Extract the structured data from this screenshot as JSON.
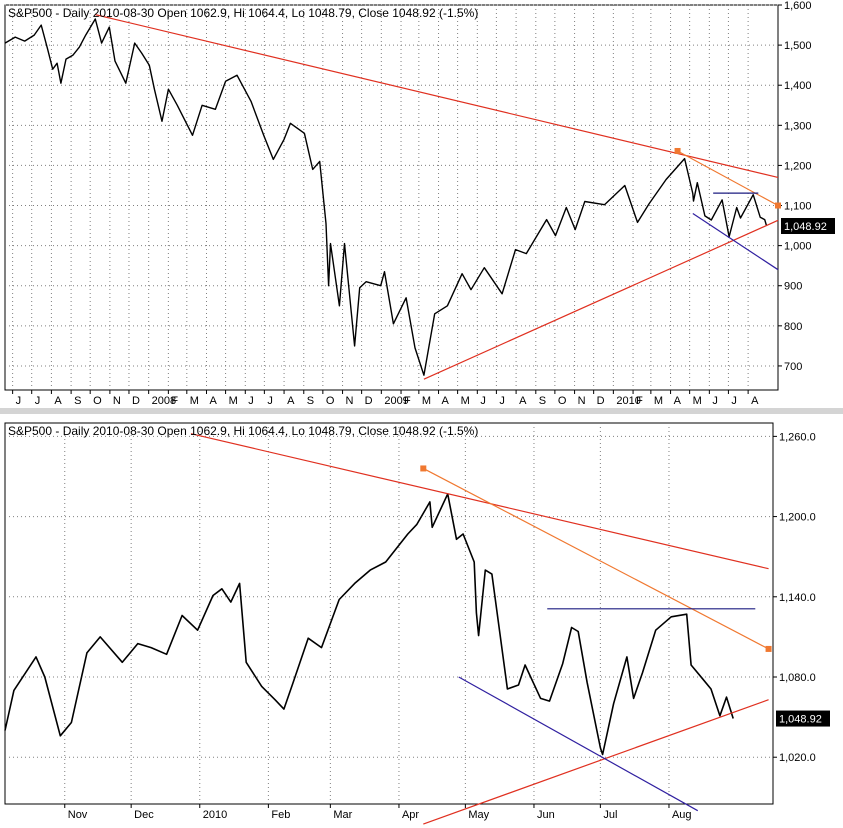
{
  "colors": {
    "price": "#000000",
    "grid": "#808080",
    "trend_red": "#e03020",
    "trend_orange": "#f07830",
    "trend_blue": "#3020a0",
    "trend_navy": "#1c1c80",
    "last_label_bg": "#000000",
    "last_label_fg": "#ffffff"
  },
  "chart_data": [
    {
      "type": "line",
      "title": "S&P500 - Daily 2010-08-30 Open 1062.9, Hi 1064.4, Lo 1048.79, Close 1048.92 (-1.5%)",
      "xlabel": "",
      "ylabel": "",
      "ylim": [
        640,
        1600
      ],
      "y_ticks": [
        700,
        800,
        900,
        1000,
        1100,
        1200,
        1300,
        1400,
        1500,
        1600
      ],
      "y_tick_labels": [
        "700",
        "800",
        "900",
        "1,000",
        "1,100",
        "1,200",
        "1,300",
        "1,400",
        "1,500",
        "1,600"
      ],
      "xlim": [
        "2007-05-20",
        "2010-09-17"
      ],
      "x_tick_labels": [
        {
          "date": "2007-06-01",
          "label": "J"
        },
        {
          "date": "2007-07-01",
          "label": "J"
        },
        {
          "date": "2007-08-01",
          "label": "A"
        },
        {
          "date": "2007-09-01",
          "label": "S"
        },
        {
          "date": "2007-10-01",
          "label": "O"
        },
        {
          "date": "2007-11-01",
          "label": "N"
        },
        {
          "date": "2007-12-01",
          "label": "D"
        },
        {
          "date": "2008-01-01",
          "label": "2008"
        },
        {
          "date": "2008-02-01",
          "label": "F"
        },
        {
          "date": "2008-03-01",
          "label": "M"
        },
        {
          "date": "2008-04-01",
          "label": "A"
        },
        {
          "date": "2008-05-01",
          "label": "M"
        },
        {
          "date": "2008-06-01",
          "label": "J"
        },
        {
          "date": "2008-07-01",
          "label": "J"
        },
        {
          "date": "2008-08-01",
          "label": "A"
        },
        {
          "date": "2008-09-01",
          "label": "S"
        },
        {
          "date": "2008-10-01",
          "label": "O"
        },
        {
          "date": "2008-11-01",
          "label": "N"
        },
        {
          "date": "2008-12-01",
          "label": "D"
        },
        {
          "date": "2009-01-01",
          "label": "2009"
        },
        {
          "date": "2009-02-01",
          "label": "F"
        },
        {
          "date": "2009-03-01",
          "label": "M"
        },
        {
          "date": "2009-04-01",
          "label": "A"
        },
        {
          "date": "2009-05-01",
          "label": "M"
        },
        {
          "date": "2009-06-01",
          "label": "J"
        },
        {
          "date": "2009-07-01",
          "label": "J"
        },
        {
          "date": "2009-08-01",
          "label": "A"
        },
        {
          "date": "2009-09-01",
          "label": "S"
        },
        {
          "date": "2009-10-01",
          "label": "O"
        },
        {
          "date": "2009-11-01",
          "label": "N"
        },
        {
          "date": "2009-12-01",
          "label": "D"
        },
        {
          "date": "2010-01-01",
          "label": "2010"
        },
        {
          "date": "2010-02-01",
          "label": "F"
        },
        {
          "date": "2010-03-01",
          "label": "M"
        },
        {
          "date": "2010-04-01",
          "label": "A"
        },
        {
          "date": "2010-05-01",
          "label": "M"
        },
        {
          "date": "2010-06-01",
          "label": "J"
        },
        {
          "date": "2010-07-01",
          "label": "J"
        },
        {
          "date": "2010-08-01",
          "label": "A"
        }
      ],
      "last_value_label": "1,048.92",
      "last_value": 1048.92,
      "series": [
        {
          "values": [
            [
              "2007-05-20",
              1505
            ],
            [
              "2007-06-05",
              1520
            ],
            [
              "2007-06-20",
              1510
            ],
            [
              "2007-07-05",
              1525
            ],
            [
              "2007-07-16",
              1550
            ],
            [
              "2007-07-26",
              1490
            ],
            [
              "2007-08-03",
              1440
            ],
            [
              "2007-08-10",
              1455
            ],
            [
              "2007-08-16",
              1405
            ],
            [
              "2007-08-24",
              1465
            ],
            [
              "2007-09-04",
              1475
            ],
            [
              "2007-09-14",
              1495
            ],
            [
              "2007-09-24",
              1525
            ],
            [
              "2007-10-09",
              1565
            ],
            [
              "2007-10-19",
              1505
            ],
            [
              "2007-10-31",
              1545
            ],
            [
              "2007-11-09",
              1460
            ],
            [
              "2007-11-26",
              1405
            ],
            [
              "2007-12-10",
              1505
            ],
            [
              "2007-12-21",
              1480
            ],
            [
              "2008-01-02",
              1450
            ],
            [
              "2008-01-10",
              1390
            ],
            [
              "2008-01-22",
              1310
            ],
            [
              "2008-02-01",
              1390
            ],
            [
              "2008-02-15",
              1350
            ],
            [
              "2008-03-10",
              1275
            ],
            [
              "2008-03-25",
              1350
            ],
            [
              "2008-04-15",
              1340
            ],
            [
              "2008-05-01",
              1410
            ],
            [
              "2008-05-19",
              1425
            ],
            [
              "2008-06-10",
              1360
            ],
            [
              "2008-06-30",
              1275
            ],
            [
              "2008-07-15",
              1215
            ],
            [
              "2008-08-01",
              1265
            ],
            [
              "2008-08-11",
              1305
            ],
            [
              "2008-09-02",
              1280
            ],
            [
              "2008-09-15",
              1190
            ],
            [
              "2008-09-26",
              1210
            ],
            [
              "2008-10-06",
              1055
            ],
            [
              "2008-10-10",
              900
            ],
            [
              "2008-10-13",
              1005
            ],
            [
              "2008-10-27",
              850
            ],
            [
              "2008-11-04",
              1005
            ],
            [
              "2008-11-20",
              750
            ],
            [
              "2008-11-28",
              895
            ],
            [
              "2008-12-08",
              910
            ],
            [
              "2008-12-31",
              900
            ],
            [
              "2009-01-06",
              935
            ],
            [
              "2009-01-20",
              805
            ],
            [
              "2009-02-09",
              870
            ],
            [
              "2009-02-23",
              745
            ],
            [
              "2009-03-09",
              677
            ],
            [
              "2009-03-26",
              830
            ],
            [
              "2009-04-15",
              850
            ],
            [
              "2009-05-08",
              930
            ],
            [
              "2009-05-22",
              890
            ],
            [
              "2009-06-12",
              945
            ],
            [
              "2009-07-10",
              880
            ],
            [
              "2009-07-31",
              990
            ],
            [
              "2009-08-17",
              980
            ],
            [
              "2009-09-18",
              1065
            ],
            [
              "2009-10-02",
              1025
            ],
            [
              "2009-10-19",
              1095
            ],
            [
              "2009-11-02",
              1040
            ],
            [
              "2009-11-17",
              1110
            ],
            [
              "2009-12-18",
              1102
            ],
            [
              "2010-01-19",
              1150
            ],
            [
              "2010-02-08",
              1058
            ],
            [
              "2010-02-26",
              1104
            ],
            [
              "2010-03-25",
              1165
            ],
            [
              "2010-04-23",
              1217
            ],
            [
              "2010-05-06",
              1130
            ],
            [
              "2010-05-07",
              1111
            ],
            [
              "2010-05-13",
              1157
            ],
            [
              "2010-05-25",
              1074
            ],
            [
              "2010-06-04",
              1064
            ],
            [
              "2010-06-21",
              1114
            ],
            [
              "2010-07-02",
              1022
            ],
            [
              "2010-07-14",
              1095
            ],
            [
              "2010-07-20",
              1069
            ],
            [
              "2010-08-09",
              1127
            ],
            [
              "2010-08-20",
              1071
            ],
            [
              "2010-08-27",
              1065
            ],
            [
              "2010-08-30",
              1048.92
            ]
          ]
        }
      ],
      "trendlines": [
        {
          "color": "red",
          "points": [
            [
              "2007-10-09",
              1576
            ],
            [
              "2010-09-17",
              1170
            ]
          ]
        },
        {
          "color": "red",
          "points": [
            [
              "2009-03-09",
              667
            ],
            [
              "2010-09-17",
              1063
            ]
          ]
        },
        {
          "color": "orange",
          "points": [
            [
              "2010-04-12",
              1236
            ],
            [
              "2010-09-17",
              1100
            ]
          ],
          "markers": true
        },
        {
          "color": "blue",
          "points": [
            [
              "2010-05-06",
              1080
            ],
            [
              "2010-09-17",
              940
            ]
          ]
        },
        {
          "color": "navy",
          "points": [
            [
              "2010-06-07",
              1131
            ],
            [
              "2010-08-17",
              1131
            ]
          ]
        }
      ]
    },
    {
      "type": "line",
      "title": "S&P500 - Daily 2010-08-30 Open 1062.9, Hi 1064.4, Lo 1048.79, Close 1048.92 (-1.5%)",
      "xlabel": "",
      "ylabel": "",
      "ylim": [
        985,
        1270
      ],
      "y_ticks": [
        1020,
        1080,
        1140,
        1200,
        1260
      ],
      "y_tick_labels": [
        "1,020.0",
        "1,080.0",
        "1,140.0",
        "1,200.0",
        "1,260.0"
      ],
      "xlim": [
        "2009-10-05",
        "2010-09-17"
      ],
      "x_tick_labels": [
        {
          "date": "2009-11-01",
          "label": "Nov"
        },
        {
          "date": "2009-12-01",
          "label": "Dec"
        },
        {
          "date": "2010-01-01",
          "label": "2010"
        },
        {
          "date": "2010-02-01",
          "label": "Feb"
        },
        {
          "date": "2010-03-01",
          "label": "Mar"
        },
        {
          "date": "2010-04-01",
          "label": "Apr"
        },
        {
          "date": "2010-05-01",
          "label": "May"
        },
        {
          "date": "2010-06-01",
          "label": "Jun"
        },
        {
          "date": "2010-07-01",
          "label": "Jul"
        },
        {
          "date": "2010-08-01",
          "label": "Aug"
        }
      ],
      "last_value_label": "1,048.92",
      "last_value": 1048.92,
      "series": [
        {
          "values": [
            [
              "2009-10-05",
              1040
            ],
            [
              "2009-10-09",
              1070
            ],
            [
              "2009-10-19",
              1095
            ],
            [
              "2009-10-23",
              1080
            ],
            [
              "2009-10-30",
              1036
            ],
            [
              "2009-11-04",
              1046
            ],
            [
              "2009-11-11",
              1098
            ],
            [
              "2009-11-17",
              1110
            ],
            [
              "2009-11-27",
              1091
            ],
            [
              "2009-12-04",
              1105
            ],
            [
              "2009-12-10",
              1102
            ],
            [
              "2009-12-17",
              1097
            ],
            [
              "2009-12-24",
              1126
            ],
            [
              "2009-12-31",
              1115
            ],
            [
              "2010-01-07",
              1141
            ],
            [
              "2010-01-11",
              1146
            ],
            [
              "2010-01-15",
              1136
            ],
            [
              "2010-01-19",
              1150
            ],
            [
              "2010-01-22",
              1091
            ],
            [
              "2010-01-29",
              1073
            ],
            [
              "2010-02-04",
              1063
            ],
            [
              "2010-02-08",
              1056
            ],
            [
              "2010-02-12",
              1075
            ],
            [
              "2010-02-19",
              1109
            ],
            [
              "2010-02-25",
              1102
            ],
            [
              "2010-03-05",
              1138
            ],
            [
              "2010-03-12",
              1150
            ],
            [
              "2010-03-19",
              1160
            ],
            [
              "2010-03-26",
              1166
            ],
            [
              "2010-04-05",
              1187
            ],
            [
              "2010-04-09",
              1194
            ],
            [
              "2010-04-15",
              1211
            ],
            [
              "2010-04-16",
              1192
            ],
            [
              "2010-04-23",
              1217
            ],
            [
              "2010-04-27",
              1183
            ],
            [
              "2010-04-30",
              1187
            ],
            [
              "2010-05-05",
              1166
            ],
            [
              "2010-05-06",
              1128
            ],
            [
              "2010-05-07",
              1111
            ],
            [
              "2010-05-10",
              1160
            ],
            [
              "2010-05-13",
              1157
            ],
            [
              "2010-05-20",
              1071
            ],
            [
              "2010-05-25",
              1074
            ],
            [
              "2010-05-28",
              1089
            ],
            [
              "2010-06-04",
              1064
            ],
            [
              "2010-06-08",
              1062
            ],
            [
              "2010-06-14",
              1090
            ],
            [
              "2010-06-18",
              1117
            ],
            [
              "2010-06-21",
              1114
            ],
            [
              "2010-06-25",
              1076
            ],
            [
              "2010-07-01",
              1027
            ],
            [
              "2010-07-02",
              1022
            ],
            [
              "2010-07-07",
              1060
            ],
            [
              "2010-07-13",
              1095
            ],
            [
              "2010-07-16",
              1064
            ],
            [
              "2010-07-20",
              1083
            ],
            [
              "2010-07-26",
              1115
            ],
            [
              "2010-08-02",
              1125
            ],
            [
              "2010-08-09",
              1127
            ],
            [
              "2010-08-11",
              1089
            ],
            [
              "2010-08-16",
              1079
            ],
            [
              "2010-08-20",
              1071
            ],
            [
              "2010-08-24",
              1051
            ],
            [
              "2010-08-27",
              1065
            ],
            [
              "2010-08-30",
              1048.92
            ]
          ]
        }
      ],
      "trendlines": [
        {
          "color": "red",
          "points": [
            [
              "2009-12-28",
              1262
            ],
            [
              "2010-09-15",
              1161
            ]
          ]
        },
        {
          "color": "red",
          "points": [
            [
              "2010-04-12",
              970
            ],
            [
              "2010-09-15",
              1063
            ]
          ]
        },
        {
          "color": "orange",
          "points": [
            [
              "2010-04-12",
              1236
            ],
            [
              "2010-09-15",
              1101
            ]
          ],
          "markers": true
        },
        {
          "color": "blue",
          "points": [
            [
              "2010-04-28",
              1080
            ],
            [
              "2010-08-14",
              980
            ]
          ]
        },
        {
          "color": "navy",
          "points": [
            [
              "2010-06-07",
              1131
            ],
            [
              "2010-09-09",
              1131
            ]
          ]
        }
      ]
    }
  ]
}
